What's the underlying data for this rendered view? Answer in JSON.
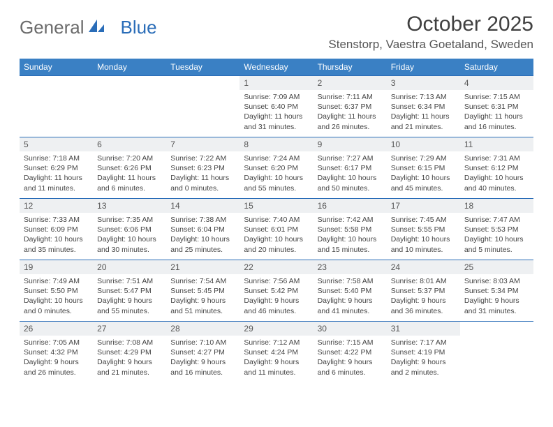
{
  "brand": {
    "part1": "General",
    "part2": "Blue"
  },
  "title": "October 2025",
  "location": "Stenstorp, Vaestra Goetaland, Sweden",
  "header_bg": "#3a80c4",
  "border_color": "#2a6db8",
  "daynum_bg": "#eef0f2",
  "weekdays": [
    "Sunday",
    "Monday",
    "Tuesday",
    "Wednesday",
    "Thursday",
    "Friday",
    "Saturday"
  ],
  "weeks": [
    [
      null,
      null,
      null,
      {
        "n": "1",
        "sr": "7:09 AM",
        "ss": "6:40 PM",
        "dl": "11 hours and 31 minutes."
      },
      {
        "n": "2",
        "sr": "7:11 AM",
        "ss": "6:37 PM",
        "dl": "11 hours and 26 minutes."
      },
      {
        "n": "3",
        "sr": "7:13 AM",
        "ss": "6:34 PM",
        "dl": "11 hours and 21 minutes."
      },
      {
        "n": "4",
        "sr": "7:15 AM",
        "ss": "6:31 PM",
        "dl": "11 hours and 16 minutes."
      }
    ],
    [
      {
        "n": "5",
        "sr": "7:18 AM",
        "ss": "6:29 PM",
        "dl": "11 hours and 11 minutes."
      },
      {
        "n": "6",
        "sr": "7:20 AM",
        "ss": "6:26 PM",
        "dl": "11 hours and 6 minutes."
      },
      {
        "n": "7",
        "sr": "7:22 AM",
        "ss": "6:23 PM",
        "dl": "11 hours and 0 minutes."
      },
      {
        "n": "8",
        "sr": "7:24 AM",
        "ss": "6:20 PM",
        "dl": "10 hours and 55 minutes."
      },
      {
        "n": "9",
        "sr": "7:27 AM",
        "ss": "6:17 PM",
        "dl": "10 hours and 50 minutes."
      },
      {
        "n": "10",
        "sr": "7:29 AM",
        "ss": "6:15 PM",
        "dl": "10 hours and 45 minutes."
      },
      {
        "n": "11",
        "sr": "7:31 AM",
        "ss": "6:12 PM",
        "dl": "10 hours and 40 minutes."
      }
    ],
    [
      {
        "n": "12",
        "sr": "7:33 AM",
        "ss": "6:09 PM",
        "dl": "10 hours and 35 minutes."
      },
      {
        "n": "13",
        "sr": "7:35 AM",
        "ss": "6:06 PM",
        "dl": "10 hours and 30 minutes."
      },
      {
        "n": "14",
        "sr": "7:38 AM",
        "ss": "6:04 PM",
        "dl": "10 hours and 25 minutes."
      },
      {
        "n": "15",
        "sr": "7:40 AM",
        "ss": "6:01 PM",
        "dl": "10 hours and 20 minutes."
      },
      {
        "n": "16",
        "sr": "7:42 AM",
        "ss": "5:58 PM",
        "dl": "10 hours and 15 minutes."
      },
      {
        "n": "17",
        "sr": "7:45 AM",
        "ss": "5:55 PM",
        "dl": "10 hours and 10 minutes."
      },
      {
        "n": "18",
        "sr": "7:47 AM",
        "ss": "5:53 PM",
        "dl": "10 hours and 5 minutes."
      }
    ],
    [
      {
        "n": "19",
        "sr": "7:49 AM",
        "ss": "5:50 PM",
        "dl": "10 hours and 0 minutes."
      },
      {
        "n": "20",
        "sr": "7:51 AM",
        "ss": "5:47 PM",
        "dl": "9 hours and 55 minutes."
      },
      {
        "n": "21",
        "sr": "7:54 AM",
        "ss": "5:45 PM",
        "dl": "9 hours and 51 minutes."
      },
      {
        "n": "22",
        "sr": "7:56 AM",
        "ss": "5:42 PM",
        "dl": "9 hours and 46 minutes."
      },
      {
        "n": "23",
        "sr": "7:58 AM",
        "ss": "5:40 PM",
        "dl": "9 hours and 41 minutes."
      },
      {
        "n": "24",
        "sr": "8:01 AM",
        "ss": "5:37 PM",
        "dl": "9 hours and 36 minutes."
      },
      {
        "n": "25",
        "sr": "8:03 AM",
        "ss": "5:34 PM",
        "dl": "9 hours and 31 minutes."
      }
    ],
    [
      {
        "n": "26",
        "sr": "7:05 AM",
        "ss": "4:32 PM",
        "dl": "9 hours and 26 minutes."
      },
      {
        "n": "27",
        "sr": "7:08 AM",
        "ss": "4:29 PM",
        "dl": "9 hours and 21 minutes."
      },
      {
        "n": "28",
        "sr": "7:10 AM",
        "ss": "4:27 PM",
        "dl": "9 hours and 16 minutes."
      },
      {
        "n": "29",
        "sr": "7:12 AM",
        "ss": "4:24 PM",
        "dl": "9 hours and 11 minutes."
      },
      {
        "n": "30",
        "sr": "7:15 AM",
        "ss": "4:22 PM",
        "dl": "9 hours and 6 minutes."
      },
      {
        "n": "31",
        "sr": "7:17 AM",
        "ss": "4:19 PM",
        "dl": "9 hours and 2 minutes."
      },
      null
    ]
  ],
  "labels": {
    "sunrise": "Sunrise:",
    "sunset": "Sunset:",
    "daylight": "Daylight:"
  }
}
